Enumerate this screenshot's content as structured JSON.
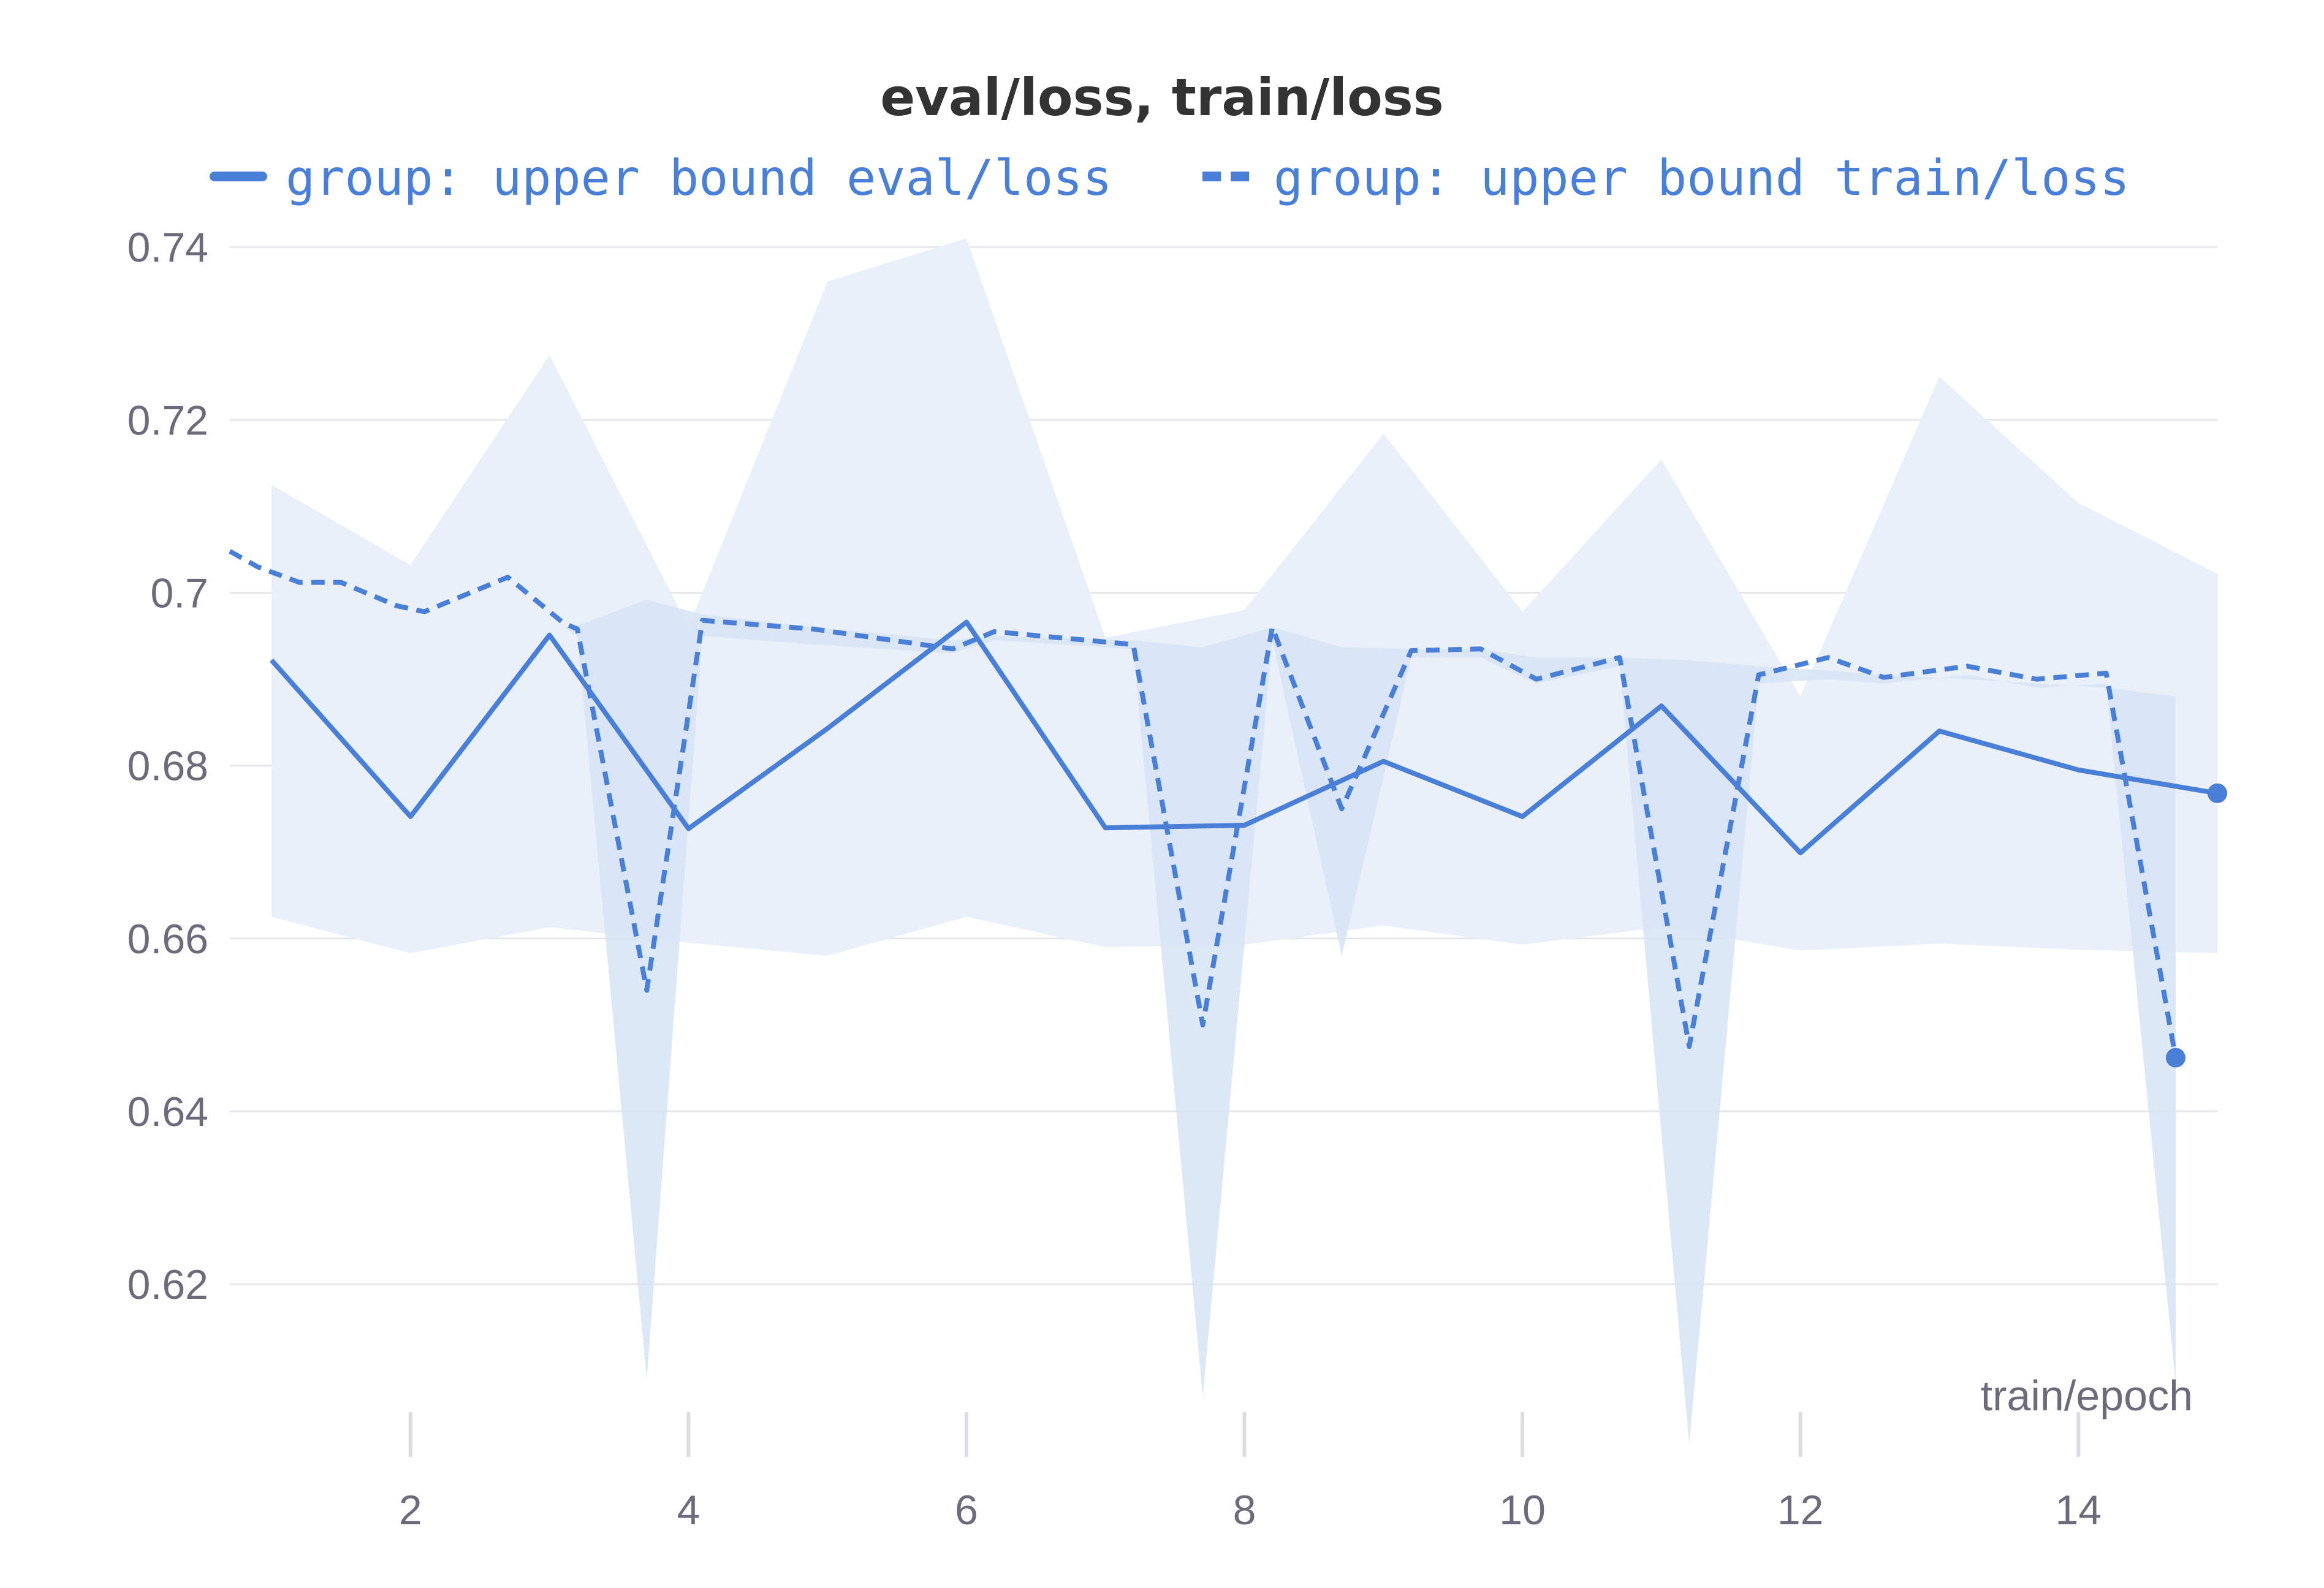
{
  "chart_data": {
    "type": "line",
    "title": "eval/loss, train/loss",
    "xlabel": "train/epoch",
    "ylabel": "",
    "xlim": [
      0.7,
      15
    ],
    "ylim": [
      0.602,
      0.742
    ],
    "x_ticks": [
      2,
      4,
      6,
      8,
      10,
      12,
      14
    ],
    "x_tick_labels": [
      "2",
      "4",
      "6",
      "8",
      "10",
      "12",
      "14"
    ],
    "y_ticks": [
      0.62,
      0.64,
      0.66,
      0.68,
      0.7,
      0.72,
      0.74
    ],
    "y_tick_labels": [
      "0.62",
      "0.64",
      "0.66",
      "0.68",
      "0.7",
      "0.72",
      "0.74"
    ],
    "grid": true,
    "legend_position": "top",
    "colors": {
      "line": "#4a7fd8",
      "band": "#e9f0fa",
      "band_overlap": "#d7e4f4"
    },
    "series": [
      {
        "name": "group: upper bound eval/loss",
        "style": "solid",
        "x": [
          1,
          2,
          3,
          4,
          5,
          6,
          7,
          8,
          9,
          10,
          11,
          12,
          13,
          14,
          15
        ],
        "values": [
          0.6922,
          0.6741,
          0.6951,
          0.6727,
          0.6843,
          0.6966,
          0.6728,
          0.6731,
          0.6805,
          0.6741,
          0.6869,
          0.6699,
          0.684,
          0.6795,
          0.6768
        ],
        "band_upper": [
          0.7125,
          0.7032,
          0.7275,
          0.696,
          0.736,
          0.741,
          0.6948,
          0.698,
          0.7184,
          0.6978,
          0.7154,
          0.688,
          0.725,
          0.7104,
          0.7022
        ],
        "band_lower": [
          0.6625,
          0.6583,
          0.6613,
          0.6595,
          0.658,
          0.6625,
          0.659,
          0.6593,
          0.6615,
          0.6593,
          0.6613,
          0.6586,
          0.6594,
          0.6587,
          0.6583
        ]
      },
      {
        "name": "group: upper bound train/loss",
        "style": "dashed",
        "x": [
          0.7,
          0.9,
          1.2,
          1.5,
          1.9,
          2.1,
          2.7,
          3.1,
          3.2,
          3.7,
          4.1,
          4.9,
          5.9,
          6.2,
          7.2,
          7.7,
          8.2,
          8.7,
          9.2,
          9.7,
          10.1,
          10.7,
          11.2,
          11.7,
          12.2,
          12.6,
          13.2,
          13.7,
          14.2,
          14.7
        ],
        "values": [
          0.7048,
          0.703,
          0.7012,
          0.7012,
          0.6985,
          0.6978,
          0.7018,
          0.6965,
          0.6958,
          0.654,
          0.6968,
          0.6958,
          0.6935,
          0.6955,
          0.694,
          0.65,
          0.696,
          0.675,
          0.6933,
          0.6935,
          0.69,
          0.6925,
          0.6475,
          0.6905,
          0.6925,
          0.6902,
          0.6915,
          0.69,
          0.6907,
          0.6462
        ],
        "band_upper": [
          null,
          null,
          null,
          null,
          null,
          null,
          null,
          0.696,
          0.6962,
          0.6992,
          0.6975,
          0.696,
          0.6945,
          0.695,
          0.6945,
          0.6937,
          0.696,
          0.6937,
          0.6935,
          0.6935,
          0.6925,
          0.6925,
          0.6922,
          0.6915,
          0.691,
          0.6905,
          0.69,
          0.6895,
          0.689,
          0.688
        ],
        "band_lower": [
          null,
          null,
          null,
          null,
          null,
          null,
          null,
          0.696,
          0.695,
          0.609,
          0.695,
          0.694,
          0.693,
          0.6945,
          0.6935,
          0.607,
          0.6945,
          0.658,
          0.6925,
          0.6925,
          0.6895,
          0.6915,
          0.6015,
          0.6895,
          0.69,
          0.6895,
          0.6905,
          0.689,
          0.6895,
          0.6085
        ]
      }
    ]
  }
}
